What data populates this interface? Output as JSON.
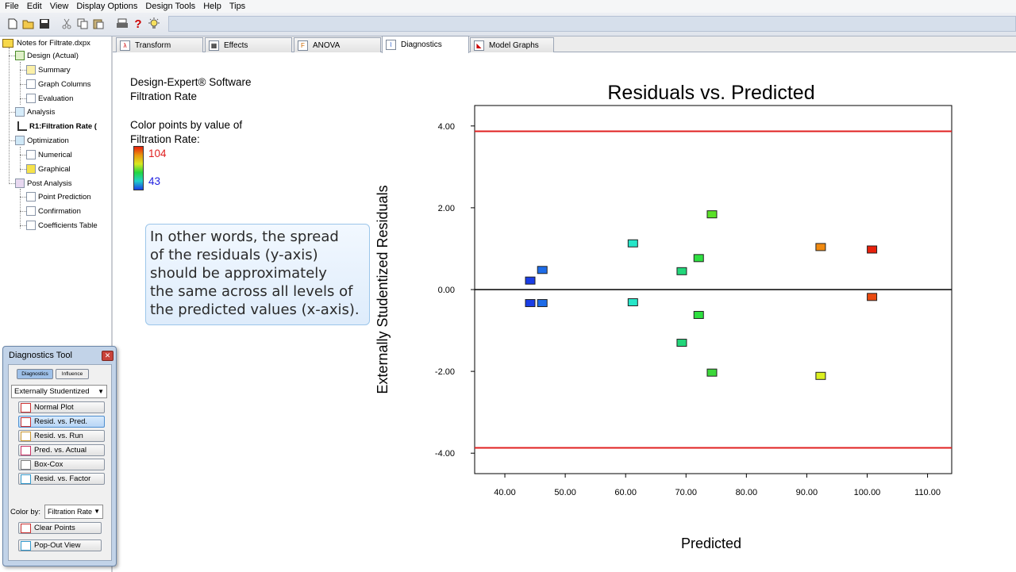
{
  "menu": [
    "File",
    "Edit",
    "View",
    "Display Options",
    "Design Tools",
    "Help",
    "Tips"
  ],
  "toolbar_icons": [
    "new-file-icon",
    "open-folder-icon",
    "save-icon",
    "cut-icon",
    "copy-icon",
    "paste-icon",
    "print-icon",
    "help-icon",
    "tip-lightbulb-icon"
  ],
  "tree": {
    "root": "Notes for Filtrate.dxpx",
    "design": "Design (Actual)",
    "summary": "Summary",
    "graph_columns": "Graph Columns",
    "evaluation": "Evaluation",
    "analysis": "Analysis",
    "r1": "R1:Filtration Rate (",
    "optimization": "Optimization",
    "numerical": "Numerical",
    "graphical": "Graphical",
    "post_analysis": "Post Analysis",
    "point_prediction": "Point Prediction",
    "confirmation": "Confirmation",
    "coefficients_table": "Coefficients Table"
  },
  "tabs": {
    "transform": "Transform",
    "effects": "Effects",
    "anova": "ANOVA",
    "diagnostics": "Diagnostics",
    "model_graphs": "Model Graphs",
    "active": "Diagnostics"
  },
  "info": {
    "software": "Design-Expert® Software",
    "response": "Filtration Rate",
    "color_title_1": "Color points by value of",
    "color_title_2": "Filtration Rate:",
    "color_max": "104",
    "color_min": "43"
  },
  "callout": {
    "line1": "In other words, the spread",
    "line2": "of the residuals (y-axis)",
    "line3": "should be approximately",
    "line4": "the same across all levels of",
    "line5": "the predicted values (x-axis)."
  },
  "diag_tool": {
    "title": "Diagnostics Tool",
    "tab_diagnostics": "Diagnostics",
    "tab_influence": "Influence",
    "residual_type": "Externally Studentized",
    "buttons": [
      "Normal Plot",
      "Resid. vs. Pred.",
      "Resid. vs. Run",
      "Pred. vs. Actual",
      "Box-Cox",
      "Resid. vs. Factor"
    ],
    "selected_button": "Resid. vs. Pred.",
    "color_by_label": "Color by:",
    "color_by_value": "Filtration Rate",
    "clear_points": "Clear Points",
    "pop_out": "Pop-Out View"
  },
  "chart_data": {
    "type": "scatter",
    "title": "Residuals vs. Predicted",
    "xlabel": "Predicted",
    "ylabel": "Externally Studentized Residuals",
    "xlim": [
      35,
      114
    ],
    "ylim": [
      -4.5,
      4.5
    ],
    "xticks": [
      "40.00",
      "50.00",
      "60.00",
      "70.00",
      "80.00",
      "90.00",
      "100.00",
      "110.00"
    ],
    "xtick_values": [
      40,
      50,
      60,
      70,
      80,
      90,
      100,
      110
    ],
    "yticks": [
      "4.00",
      "2.00",
      "0.00",
      "-2.00",
      "-4.00"
    ],
    "ytick_values": [
      4,
      2,
      0,
      -2,
      -4
    ],
    "limit_lines": [
      3.87,
      -3.87
    ],
    "zero_line": 0,
    "grid": false,
    "points": [
      {
        "x": 44.2,
        "y": 0.21,
        "color": "#1a3ee6"
      },
      {
        "x": 44.2,
        "y": -0.34,
        "color": "#1a3ee6"
      },
      {
        "x": 46.2,
        "y": 0.47,
        "color": "#1e6ce8"
      },
      {
        "x": 46.2,
        "y": -0.34,
        "color": "#1e6ce8"
      },
      {
        "x": 61.2,
        "y": 1.12,
        "color": "#26e6c8"
      },
      {
        "x": 61.2,
        "y": -0.32,
        "color": "#26e6c8"
      },
      {
        "x": 69.3,
        "y": 0.44,
        "color": "#22d67a"
      },
      {
        "x": 69.3,
        "y": -1.31,
        "color": "#22d67a"
      },
      {
        "x": 72.1,
        "y": 0.76,
        "color": "#2ee040"
      },
      {
        "x": 72.1,
        "y": -0.63,
        "color": "#2ee040"
      },
      {
        "x": 74.3,
        "y": 1.83,
        "color": "#5ae028"
      },
      {
        "x": 74.3,
        "y": -2.04,
        "color": "#3cd83a"
      },
      {
        "x": 92.3,
        "y": 1.03,
        "color": "#f08a10"
      },
      {
        "x": 92.3,
        "y": -2.12,
        "color": "#dcf020"
      },
      {
        "x": 100.8,
        "y": 0.97,
        "color": "#e8200c"
      },
      {
        "x": 100.8,
        "y": -0.19,
        "color": "#ea4a10"
      }
    ],
    "colors": {
      "limit": "#e02020",
      "zero": "#000000",
      "scale_top": "#e8200c",
      "scale_bottom": "#1a3ee6"
    }
  }
}
